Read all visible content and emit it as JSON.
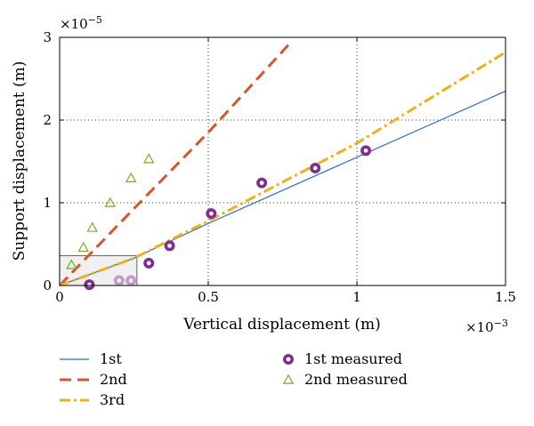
{
  "chart_data": {
    "type": "line",
    "xlabel": "Vertical displacement (m)",
    "ylabel": "Support displacement (m)",
    "x_multiplier": "×10",
    "x_exponent": "−3",
    "y_multiplier": "×10",
    "y_exponent": "−5",
    "xlim": [
      0,
      0.0015
    ],
    "ylim": [
      0,
      3e-05
    ],
    "xticks": [
      0,
      0.0005,
      0.001,
      0.0015
    ],
    "xtick_labels": [
      "0",
      "0.5",
      "1",
      "1.5"
    ],
    "yticks": [
      0,
      1e-05,
      2e-05,
      3e-05
    ],
    "ytick_labels": [
      "0",
      "1",
      "2",
      "3"
    ],
    "grid": true,
    "legend_position": "below plot",
    "inset_box": {
      "x": [
        0,
        0.00026
      ],
      "y": [
        0,
        3.6e-06
      ]
    },
    "series": [
      {
        "name": "1st",
        "kind": "line",
        "style": "solid",
        "color": "#2f6fbf",
        "x": [
          0,
          0.00025,
          0.0005,
          0.00075,
          0.001,
          0.0015
        ],
        "y": [
          0,
          3.3e-06,
          7.5e-06,
          1.15e-05,
          1.55e-05,
          2.35e-05
        ]
      },
      {
        "name": "2nd",
        "kind": "line",
        "style": "dashed",
        "color": "#d9542b",
        "x": [
          0,
          0.00025,
          0.0005,
          0.00078
        ],
        "y": [
          0,
          9.3e-06,
          1.85e-05,
          2.95e-05
        ]
      },
      {
        "name": "3rd",
        "kind": "line",
        "style": "dashdot",
        "color": "#edb120",
        "x": [
          0,
          0.00025,
          0.0005,
          0.00075,
          0.001,
          0.0015
        ],
        "y": [
          0,
          3.3e-06,
          7.8e-06,
          1.25e-05,
          1.72e-05,
          2.82e-05
        ]
      },
      {
        "name": "1st measured",
        "kind": "marker",
        "marker": "circle",
        "color": "#7e2f8e",
        "x": [
          0.0001,
          0.0003,
          0.00037,
          0.00051,
          0.00068,
          0.00086,
          0.00103
        ],
        "y": [
          1e-07,
          2.7e-06,
          4.8e-06,
          8.7e-06,
          1.24e-05,
          1.42e-05,
          1.63e-05
        ]
      },
      {
        "name": "1st measured (inset)",
        "kind": "marker",
        "marker": "circle",
        "color": "#c09cc8",
        "legend": false,
        "x": [
          0.0002,
          0.00024
        ],
        "y": [
          6e-07,
          6e-07
        ]
      },
      {
        "name": "2nd measured",
        "kind": "marker",
        "marker": "triangle",
        "color": "#77ac30",
        "x": [
          4e-05,
          8e-05,
          0.00011,
          0.00017,
          0.00024,
          0.0003
        ],
        "y": [
          2.5e-06,
          4.6e-06,
          7e-06,
          1e-05,
          1.3e-05,
          1.53e-05
        ]
      }
    ]
  }
}
